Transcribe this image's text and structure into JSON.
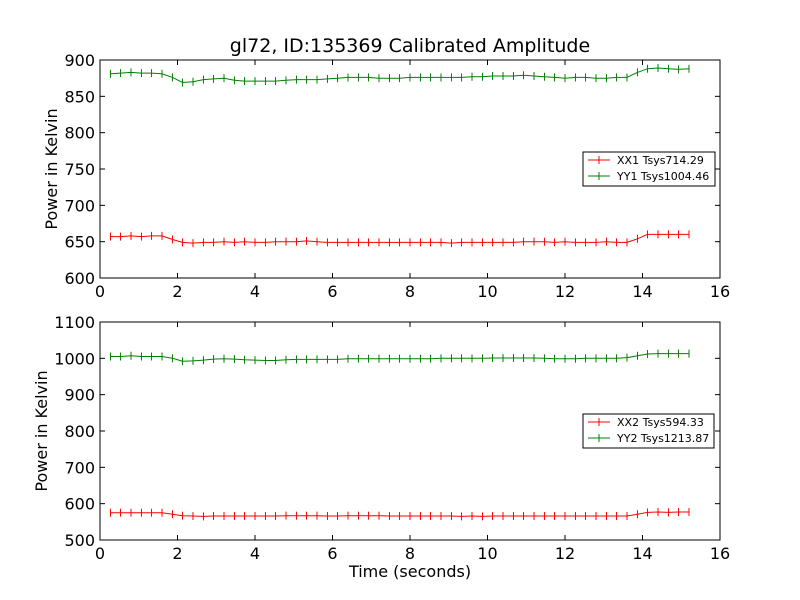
{
  "chart_data": [
    {
      "type": "line",
      "title": "gl72, ID:135369 Calibrated Amplitude",
      "xlabel": "",
      "ylabel": "Power in Kelvin",
      "xlim": [
        0,
        16
      ],
      "ylim": [
        600,
        900
      ],
      "xticks": [
        "0",
        "2",
        "4",
        "6",
        "8",
        "10",
        "12",
        "14",
        "16"
      ],
      "yticks": [
        "600",
        "650",
        "700",
        "750",
        "800",
        "850",
        "900"
      ],
      "legend_position": "center-right",
      "x": [
        0.27,
        0.53,
        0.8,
        1.07,
        1.33,
        1.6,
        1.87,
        2.13,
        2.4,
        2.67,
        2.93,
        3.2,
        3.47,
        3.73,
        4.0,
        4.27,
        4.53,
        4.8,
        5.07,
        5.33,
        5.6,
        5.87,
        6.13,
        6.4,
        6.67,
        6.93,
        7.2,
        7.47,
        7.73,
        8.0,
        8.27,
        8.53,
        8.8,
        9.07,
        9.33,
        9.6,
        9.87,
        10.13,
        10.4,
        10.67,
        10.93,
        11.2,
        11.47,
        11.73,
        12.0,
        12.27,
        12.53,
        12.8,
        13.07,
        13.33,
        13.6,
        13.87,
        14.13,
        14.4,
        14.67,
        14.93,
        15.2
      ],
      "series": [
        {
          "name": "XX1 Tsys714.29",
          "color": "#ff0000",
          "values": [
            657,
            657,
            658,
            657,
            658,
            658,
            653,
            649,
            648,
            649,
            649,
            650,
            649,
            650,
            649,
            649,
            650,
            650,
            650,
            651,
            650,
            649,
            649,
            649,
            649,
            649,
            649,
            649,
            649,
            649,
            649,
            649,
            649,
            648,
            649,
            649,
            649,
            649,
            649,
            649,
            650,
            650,
            650,
            649,
            650,
            649,
            649,
            649,
            650,
            649,
            649,
            654,
            660,
            660,
            660,
            660,
            660
          ]
        },
        {
          "name": "YY1 Tsys1004.46",
          "color": "#008000",
          "values": [
            881,
            882,
            883,
            882,
            882,
            881,
            876,
            869,
            870,
            873,
            874,
            875,
            872,
            871,
            871,
            871,
            871,
            872,
            873,
            873,
            873,
            874,
            875,
            876,
            876,
            876,
            875,
            875,
            875,
            876,
            876,
            876,
            876,
            876,
            876,
            877,
            877,
            878,
            878,
            878,
            879,
            878,
            877,
            876,
            875,
            876,
            876,
            875,
            875,
            876,
            876,
            883,
            888,
            889,
            888,
            887,
            888
          ]
        }
      ]
    },
    {
      "type": "line",
      "title": "",
      "xlabel": "Time (seconds)",
      "ylabel": "Power in Kelvin",
      "xlim": [
        0,
        16
      ],
      "ylim": [
        500,
        1100
      ],
      "xticks": [
        "0",
        "2",
        "4",
        "6",
        "8",
        "10",
        "12",
        "14",
        "16"
      ],
      "yticks": [
        "500",
        "600",
        "700",
        "800",
        "900",
        "1000",
        "1100"
      ],
      "legend_position": "center-right",
      "x": [
        0.27,
        0.53,
        0.8,
        1.07,
        1.33,
        1.6,
        1.87,
        2.13,
        2.4,
        2.67,
        2.93,
        3.2,
        3.47,
        3.73,
        4.0,
        4.27,
        4.53,
        4.8,
        5.07,
        5.33,
        5.6,
        5.87,
        6.13,
        6.4,
        6.67,
        6.93,
        7.2,
        7.47,
        7.73,
        8.0,
        8.27,
        8.53,
        8.8,
        9.07,
        9.33,
        9.6,
        9.87,
        10.13,
        10.4,
        10.67,
        10.93,
        11.2,
        11.47,
        11.73,
        12.0,
        12.27,
        12.53,
        12.8,
        13.07,
        13.33,
        13.6,
        13.87,
        14.13,
        14.4,
        14.67,
        14.93,
        15.2
      ],
      "series": [
        {
          "name": "XX2 Tsys594.33",
          "color": "#ff0000",
          "values": [
            575,
            575,
            575,
            575,
            575,
            575,
            571,
            567,
            566,
            565,
            566,
            566,
            566,
            566,
            566,
            566,
            566,
            567,
            567,
            567,
            567,
            566,
            566,
            567,
            567,
            567,
            567,
            566,
            566,
            566,
            566,
            566,
            566,
            566,
            565,
            566,
            565,
            566,
            566,
            566,
            566,
            566,
            566,
            566,
            566,
            566,
            566,
            566,
            566,
            566,
            566,
            571,
            576,
            577,
            576,
            577,
            577
          ]
        },
        {
          "name": "YY2 Tsys1213.87",
          "color": "#008000",
          "values": [
            1005,
            1005,
            1007,
            1005,
            1005,
            1005,
            1000,
            992,
            993,
            995,
            998,
            999,
            998,
            996,
            995,
            994,
            994,
            996,
            997,
            997,
            997,
            997,
            997,
            999,
            999,
            999,
            999,
            999,
            999,
            999,
            999,
            999,
            1000,
            1000,
            1000,
            1000,
            1000,
            1001,
            1001,
            1001,
            1001,
            1001,
            1000,
            999,
            999,
            999,
            1000,
            1000,
            1000,
            1000,
            1002,
            1007,
            1012,
            1013,
            1013,
            1013,
            1013
          ]
        }
      ]
    }
  ]
}
